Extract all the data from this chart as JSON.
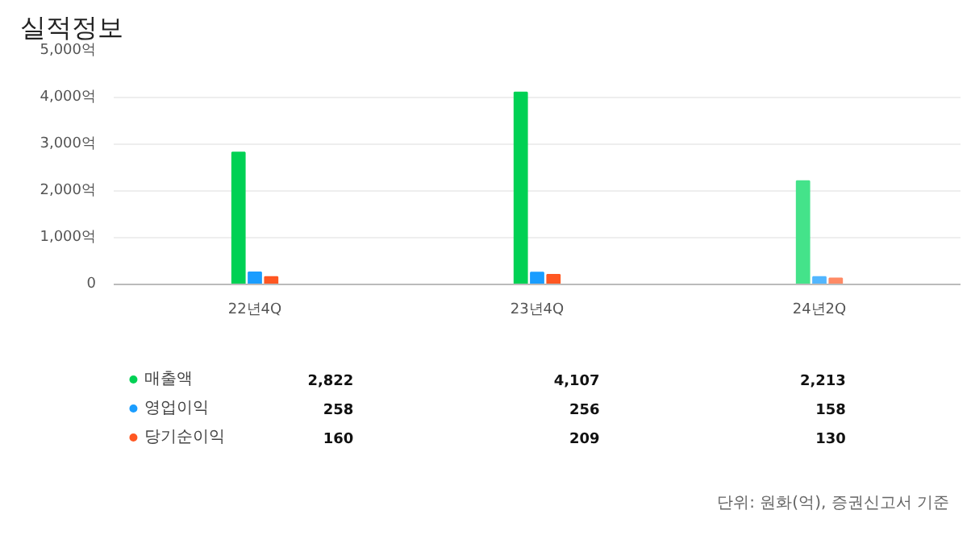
{
  "chart_data": {
    "type": "bar",
    "title": "실적정보",
    "categories": [
      "22년4Q",
      "23년4Q",
      "24년2Q"
    ],
    "series": [
      {
        "name": "매출액",
        "color": "#00d154",
        "colors": [
          "#00d154",
          "#00d154",
          "#44e38a"
        ],
        "values": [
          2822,
          4107,
          2213
        ],
        "value_labels": [
          "2,822",
          "4,107",
          "2,213"
        ]
      },
      {
        "name": "영업이익",
        "color": "#1a9dff",
        "colors": [
          "#1a9dff",
          "#1a9dff",
          "#52b6ff"
        ],
        "values": [
          258,
          256,
          158
        ],
        "value_labels": [
          "258",
          "256",
          "158"
        ]
      },
      {
        "name": "당기순이익",
        "color": "#ff5722",
        "colors": [
          "#ff5722",
          "#ff5722",
          "#ff8a65"
        ],
        "values": [
          160,
          209,
          130
        ],
        "value_labels": [
          "160",
          "209",
          "130"
        ]
      }
    ],
    "ylim": [
      0,
      5000
    ],
    "yticks": [
      0,
      {
        "value": 1000,
        "label": "1,000억"
      },
      {
        "value": 2000,
        "label": "2,000억"
      },
      {
        "value": 3000,
        "label": "3,000억"
      },
      {
        "value": 4000,
        "label": "4,000억"
      },
      {
        "value": 5000,
        "label": "5,000억"
      }
    ],
    "grid": "y",
    "legend": "bottom",
    "annotations": [
      "단위: 원화(억), 증권신고서 기준"
    ]
  }
}
